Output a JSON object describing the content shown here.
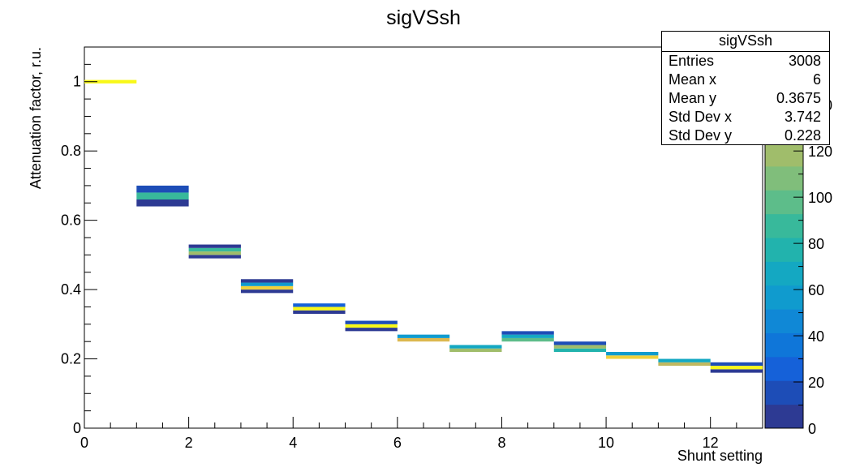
{
  "chart_data": {
    "type": "heatmap",
    "title": "sigVSsh",
    "xlabel": "Shunt setting",
    "ylabel": "Attenuation factor, r.u.",
    "xlim": [
      0,
      13
    ],
    "ylim": [
      0,
      1.1
    ],
    "x_ticks": [
      "0",
      "2",
      "4",
      "6",
      "8",
      "10",
      "12"
    ],
    "y_ticks": [
      "0",
      "0.2",
      "0.4",
      "0.6",
      "0.8",
      "1"
    ],
    "z_ticks": [
      "0",
      "20",
      "40",
      "60",
      "80",
      "100",
      "120",
      "140"
    ],
    "zlim": [
      0,
      165
    ],
    "bins": [
      {
        "x0": 0,
        "x1": 1,
        "cells": [
          {
            "y0": 0.995,
            "y1": 1.005,
            "z": 165
          }
        ]
      },
      {
        "x0": 1,
        "x1": 2,
        "cells": [
          {
            "y0": 0.64,
            "y1": 0.66,
            "z": 5
          },
          {
            "y0": 0.66,
            "y1": 0.68,
            "z": 85
          },
          {
            "y0": 0.68,
            "y1": 0.7,
            "z": 15
          }
        ]
      },
      {
        "x0": 2,
        "x1": 3,
        "cells": [
          {
            "y0": 0.49,
            "y1": 0.5,
            "z": 5
          },
          {
            "y0": 0.5,
            "y1": 0.51,
            "z": 120
          },
          {
            "y0": 0.51,
            "y1": 0.52,
            "z": 90
          },
          {
            "y0": 0.52,
            "y1": 0.53,
            "z": 10
          }
        ]
      },
      {
        "x0": 3,
        "x1": 4,
        "cells": [
          {
            "y0": 0.39,
            "y1": 0.4,
            "z": 5
          },
          {
            "y0": 0.4,
            "y1": 0.41,
            "z": 150
          },
          {
            "y0": 0.41,
            "y1": 0.42,
            "z": 55
          },
          {
            "y0": 0.42,
            "y1": 0.43,
            "z": 10
          }
        ]
      },
      {
        "x0": 4,
        "x1": 5,
        "cells": [
          {
            "y0": 0.33,
            "y1": 0.34,
            "z": 10
          },
          {
            "y0": 0.34,
            "y1": 0.35,
            "z": 160
          },
          {
            "y0": 0.35,
            "y1": 0.36,
            "z": 25
          }
        ]
      },
      {
        "x0": 5,
        "x1": 6,
        "cells": [
          {
            "y0": 0.28,
            "y1": 0.29,
            "z": 10
          },
          {
            "y0": 0.29,
            "y1": 0.3,
            "z": 160
          },
          {
            "y0": 0.3,
            "y1": 0.31,
            "z": 20
          }
        ]
      },
      {
        "x0": 6,
        "x1": 7,
        "cells": [
          {
            "y0": 0.25,
            "y1": 0.26,
            "z": 140
          },
          {
            "y0": 0.26,
            "y1": 0.27,
            "z": 60
          }
        ]
      },
      {
        "x0": 7,
        "x1": 8,
        "cells": [
          {
            "y0": 0.22,
            "y1": 0.23,
            "z": 120
          },
          {
            "y0": 0.23,
            "y1": 0.24,
            "z": 70
          }
        ]
      },
      {
        "x0": 8,
        "x1": 9,
        "cells": [
          {
            "y0": 0.25,
            "y1": 0.26,
            "z": 100
          },
          {
            "y0": 0.26,
            "y1": 0.27,
            "z": 70
          },
          {
            "y0": 0.27,
            "y1": 0.28,
            "z": 15
          }
        ]
      },
      {
        "x0": 9,
        "x1": 10,
        "cells": [
          {
            "y0": 0.22,
            "y1": 0.23,
            "z": 80
          },
          {
            "y0": 0.23,
            "y1": 0.24,
            "z": 120
          },
          {
            "y0": 0.24,
            "y1": 0.25,
            "z": 15
          }
        ]
      },
      {
        "x0": 10,
        "x1": 11,
        "cells": [
          {
            "y0": 0.2,
            "y1": 0.21,
            "z": 150
          },
          {
            "y0": 0.21,
            "y1": 0.22,
            "z": 60
          }
        ]
      },
      {
        "x0": 11,
        "x1": 12,
        "cells": [
          {
            "y0": 0.18,
            "y1": 0.19,
            "z": 130
          },
          {
            "y0": 0.19,
            "y1": 0.2,
            "z": 70
          }
        ]
      },
      {
        "x0": 12,
        "x1": 13,
        "cells": [
          {
            "y0": 0.16,
            "y1": 0.17,
            "z": 10
          },
          {
            "y0": 0.17,
            "y1": 0.18,
            "z": 165
          },
          {
            "y0": 0.18,
            "y1": 0.19,
            "z": 20
          }
        ]
      }
    ]
  },
  "stats": {
    "title": "sigVSsh",
    "rows": [
      {
        "label": "Entries",
        "value": "3008"
      },
      {
        "label": "Mean x",
        "value": "6"
      },
      {
        "label": "Mean y",
        "value": "0.3675"
      },
      {
        "label": "Std Dev x",
        "value": "3.742"
      },
      {
        "label": "Std Dev y",
        "value": "0.228"
      }
    ]
  },
  "colors": {
    "palette": [
      "#2d3a93",
      "#1d4db7",
      "#1561d9",
      "#0f76d9",
      "#1088d6",
      "#109bce",
      "#14a8c2",
      "#22b3ad",
      "#38b99b",
      "#5dbd8a",
      "#80be7b",
      "#a0bd6b",
      "#c0b85f",
      "#dcb84f",
      "#f0d13c",
      "#f8f819"
    ]
  }
}
